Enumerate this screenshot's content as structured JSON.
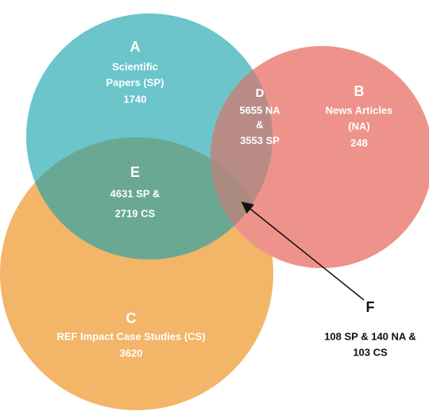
{
  "regions": [
    {
      "letter": "A",
      "lines": [
        "Scientific",
        "Papers (SP)",
        "1740"
      ]
    },
    {
      "letter": "B",
      "lines": [
        "News Articles",
        "(NA)",
        "248"
      ]
    },
    {
      "letter": "C",
      "lines": [
        "REF Impact Case Studies (CS)",
        "3620"
      ]
    },
    {
      "letter": "D",
      "lines": [
        "5655 NA",
        "&",
        "3553 SP"
      ]
    },
    {
      "letter": "E",
      "lines": [
        "4631 SP &",
        "2719 CS"
      ]
    },
    {
      "letter": "F",
      "lines": [
        "108 SP & 140 NA &",
        "103 CS"
      ]
    }
  ]
}
